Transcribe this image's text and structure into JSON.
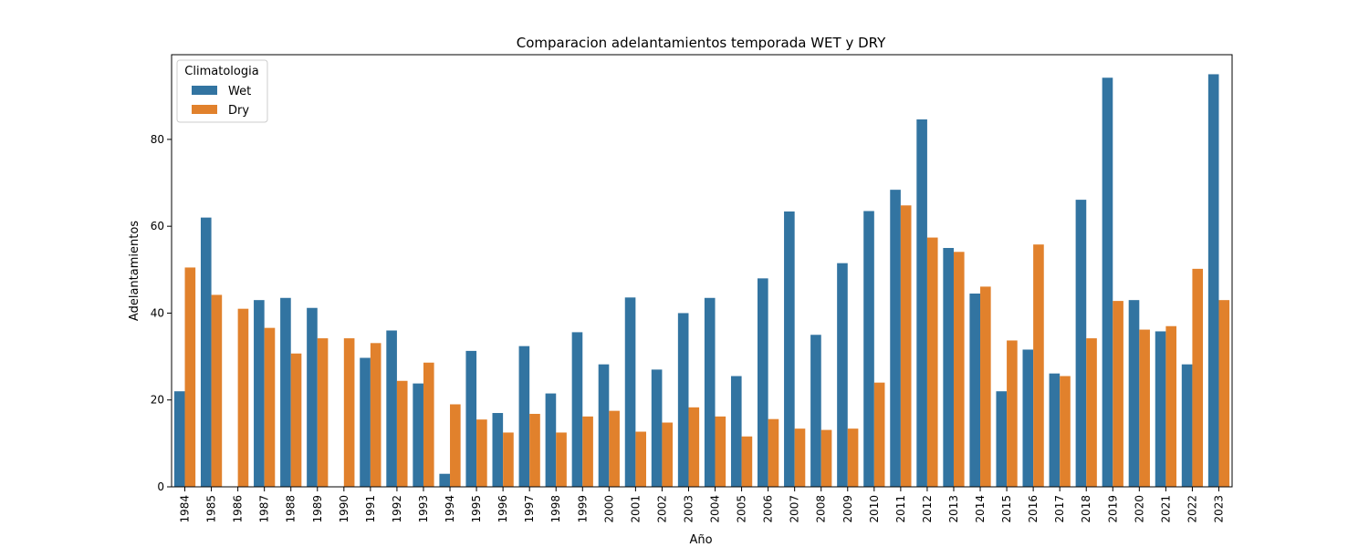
{
  "chart_data": {
    "type": "bar",
    "title": "Comparacion adelantamientos temporada WET y DRY",
    "xlabel": "Año",
    "ylabel": "Adelantamientos",
    "ylim": [
      0,
      99.5
    ],
    "yticks": [
      0,
      20,
      40,
      60,
      80
    ],
    "grid": false,
    "legend": {
      "title": "Climatologia",
      "placement": "top-left"
    },
    "categories": [
      "1984",
      "1985",
      "1986",
      "1987",
      "1988",
      "1989",
      "1990",
      "1991",
      "1992",
      "1993",
      "1994",
      "1995",
      "1996",
      "1997",
      "1998",
      "1999",
      "2000",
      "2001",
      "2002",
      "2003",
      "2004",
      "2005",
      "2006",
      "2007",
      "2008",
      "2009",
      "2010",
      "2011",
      "2012",
      "2013",
      "2014",
      "2015",
      "2016",
      "2017",
      "2018",
      "2019",
      "2020",
      "2021",
      "2022",
      "2023"
    ],
    "series": [
      {
        "name": "Wet",
        "color": "#3274a1",
        "values": [
          22,
          62,
          0,
          43,
          43.5,
          41.2,
          0,
          29.7,
          36,
          23.8,
          3,
          31.3,
          17,
          32.4,
          21.5,
          35.6,
          28.2,
          43.6,
          27,
          40,
          43.5,
          25.5,
          48,
          63.4,
          35,
          51.5,
          63.5,
          68.4,
          84.6,
          55,
          44.5,
          22,
          31.6,
          26.1,
          66.1,
          94.2,
          43,
          35.8,
          28.2,
          95
        ]
      },
      {
        "name": "Dry",
        "color": "#e1812c",
        "values": [
          50.5,
          44.2,
          41,
          36.6,
          30.7,
          34.2,
          34.2,
          33.1,
          24.4,
          28.6,
          19,
          15.5,
          12.5,
          16.8,
          12.5,
          16.2,
          17.5,
          12.7,
          14.8,
          18.3,
          16.2,
          11.6,
          15.6,
          13.4,
          13.1,
          13.4,
          24,
          64.8,
          57.4,
          54.1,
          46.1,
          33.7,
          55.8,
          25.5,
          34.2,
          42.8,
          36.2,
          37,
          50.2,
          43
        ]
      }
    ]
  }
}
